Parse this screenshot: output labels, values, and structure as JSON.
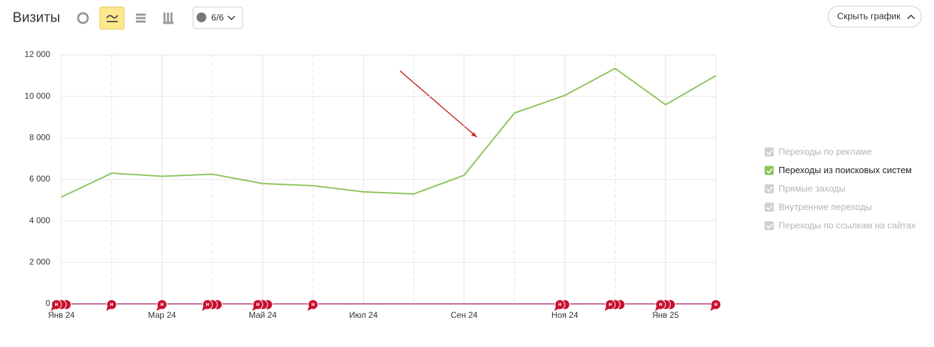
{
  "header": {
    "title": "Визиты",
    "counter_button": "6/6",
    "hide_button": "Скрыть график"
  },
  "chart_data": {
    "type": "line",
    "categories": [
      "Янв 24",
      null,
      "Мар 24",
      null,
      "Май 24",
      null,
      "Июл 24",
      null,
      "Сен 24",
      null,
      "Ноя 24",
      null,
      "Янв 25",
      null
    ],
    "series": [
      {
        "name": "Переходы по рекламе",
        "visible": false
      },
      {
        "name": "Переходы из поисковых систем",
        "visible": true,
        "color": "#8cc45c",
        "values": [
          5150,
          6300,
          6150,
          6250,
          5800,
          5700,
          5400,
          5300,
          6200,
          9200,
          10050,
          11350,
          9600,
          11000
        ]
      },
      {
        "name": "Прямые заходы",
        "visible": false
      },
      {
        "name": "Внутренние переходы",
        "visible": false
      },
      {
        "name": "Переходы по ссылкам на сайтах",
        "visible": false
      }
    ],
    "ylim": [
      0,
      12000
    ],
    "yticks": [
      0,
      {
        "value": 2000,
        "label": "2 000"
      },
      {
        "value": 4000,
        "label": "4 000"
      },
      {
        "value": 6000,
        "label": "6 000"
      },
      {
        "value": 8000,
        "label": "8 000"
      },
      {
        "value": 10000,
        "label": "10 000"
      },
      {
        "value": 12000,
        "label": "12 000"
      }
    ],
    "grid": true,
    "note_label": "н",
    "notes": [
      {
        "at": 0,
        "count": 3
      },
      {
        "at": 1,
        "count": 1
      },
      {
        "at": 2,
        "count": 1
      },
      {
        "at": 3,
        "count": 3
      },
      {
        "at": 4,
        "count": 3
      },
      {
        "at": 5,
        "count": 1
      },
      {
        "at": 10,
        "count": 2
      },
      {
        "at": 11,
        "count": 3
      },
      {
        "at": 12,
        "count": 3
      },
      {
        "at": 13,
        "count": 1
      }
    ]
  }
}
